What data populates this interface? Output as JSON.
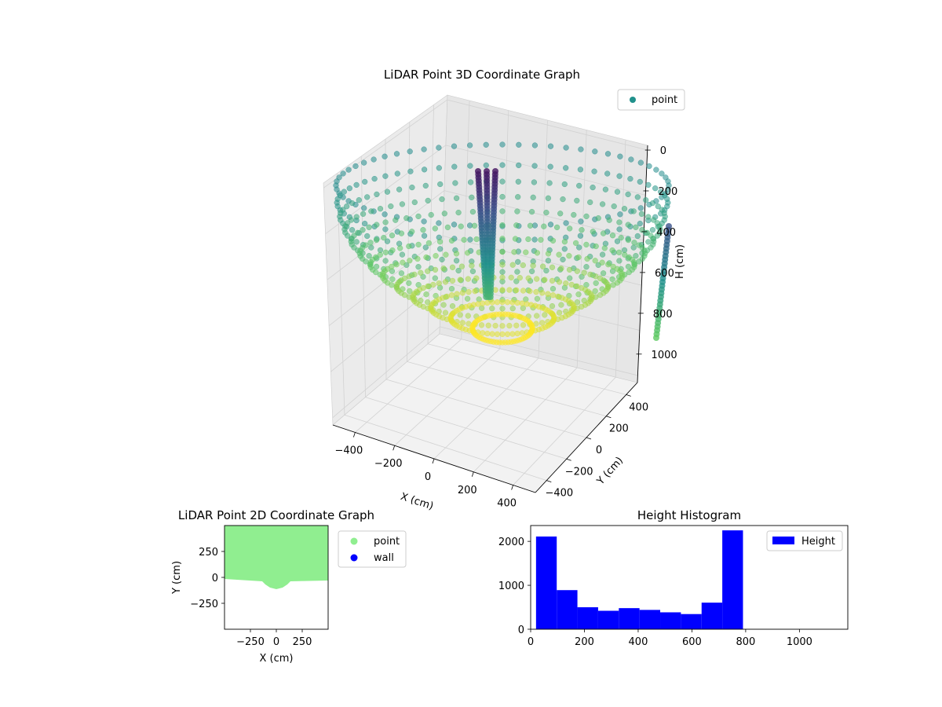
{
  "chart_data": [
    {
      "type": "scatter",
      "title": "LiDAR Point 3D Coordinate Graph",
      "xlabel": "X (cm)",
      "ylabel": "Y (cm)",
      "zlabel": "H (cm)",
      "xticks": [
        "−400",
        "−200",
        "0",
        "200",
        "400"
      ],
      "yticks": [
        "400",
        "200",
        "0",
        "−200",
        "−400"
      ],
      "zticks": [
        "0",
        "200",
        "400",
        "600",
        "800",
        "1000"
      ],
      "xlim": [
        -450,
        450
      ],
      "ylim": [
        -450,
        450
      ],
      "zlim": [
        1050,
        0
      ],
      "z_inverted": true,
      "colormap": "viridis",
      "legend": {
        "position": "top-right",
        "entries": [
          {
            "label": "point",
            "color": "#21918c"
          }
        ]
      },
      "grid": true,
      "series": [
        {
          "name": "point",
          "description_values": {
            "wall_ring_radius_cm": 450,
            "wall_height_range_cm": [
              0,
              1000
            ],
            "pillar_near_x_cm": -150,
            "pillar_far_x_cm": 420
          }
        }
      ]
    },
    {
      "type": "scatter",
      "title": "LiDAR Point 2D Coordinate Graph",
      "xlabel": "X (cm)",
      "ylabel": "Y (cm)",
      "xticks": [
        "−250",
        "0",
        "250"
      ],
      "yticks": [
        "250",
        "0",
        "−250"
      ],
      "xlim": [
        -500,
        500
      ],
      "ylim": [
        -500,
        500
      ],
      "legend": {
        "position": "outside-right",
        "entries": [
          {
            "label": "point",
            "color": "#90ee90"
          },
          {
            "label": "wall",
            "color": "#0000ff"
          }
        ]
      }
    },
    {
      "type": "bar",
      "title": "Height Histogram",
      "xlabel": "",
      "ylabel": "",
      "xticks": [
        "0",
        "200",
        "400",
        "600",
        "800",
        "1000"
      ],
      "yticks": [
        "0",
        "1000",
        "2000"
      ],
      "xlim": [
        0,
        1180
      ],
      "ylim": [
        0,
        2360
      ],
      "bin_edges": [
        20,
        97,
        174,
        251,
        328,
        405,
        482,
        559,
        636,
        713,
        790
      ],
      "values": [
        2110,
        890,
        500,
        420,
        480,
        440,
        385,
        345,
        605,
        2250
      ],
      "color": "#0000ff",
      "legend": {
        "position": "top-right",
        "entries": [
          {
            "label": "Height",
            "color": "#0000ff"
          }
        ]
      }
    }
  ]
}
